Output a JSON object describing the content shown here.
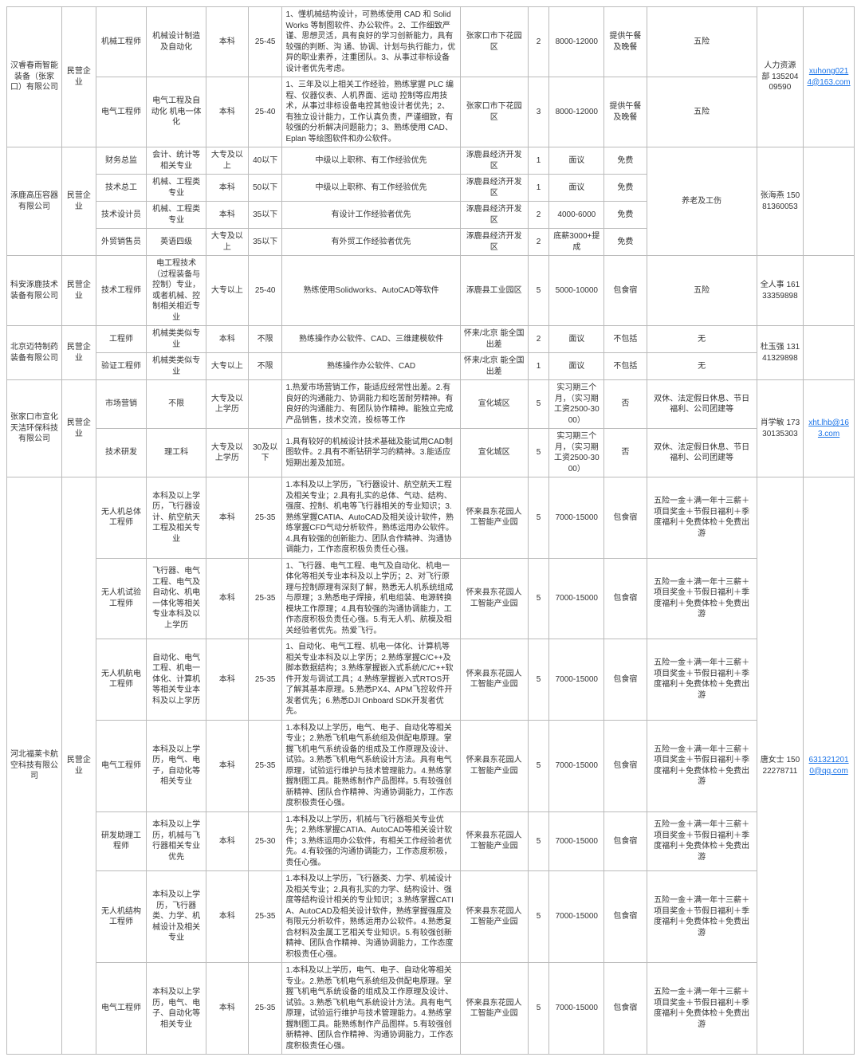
{
  "link_color": "#1a73e8",
  "cells": {
    "c1_name": "汉睿春雨智能装备（张家口）有限公司",
    "c1_type": "民营企业",
    "c1_p1_post": "机械工程师",
    "c1_p1_major": "机械设计制造及自动化",
    "c1_p1_edu": "本科",
    "c1_p1_age": "25-45",
    "c1_p1_req": "1、懂机械结构设计，可熟练使用 CAD 和 SolidWorks 等制图软件、办公软件。2、工作细致严谨、思想灵活，具有良好的学习创新能力，具有较强的判断、沟 通、协调、计划与执行能力，优异的职业素养，注重团队。3、从事过非标设备设计者优先考虑。",
    "c1_p1_loc": "张家口市下花园区",
    "c1_p1_num": "2",
    "c1_p1_sal": "8000-12000",
    "c1_p1_wel": "提供午餐及晚餐",
    "c1_p1_ins": "五险",
    "c1_p2_post": "电气工程师",
    "c1_p2_major": "电气工程及自动化 机电一体化",
    "c1_p2_edu": "本科",
    "c1_p2_age": "25-40",
    "c1_p2_req": "1、三年及以上相关工作经验，熟练掌握 PLC 编程、仪器仪表、人机界面、运动 控制等应用技术，从事过非标设备电控其他设计者优先；2、有独立设计能力，工作认真负责，严谨细致，有较强的分析解决问题能力；3、熟练使用 CAD、Eplan 等绘图软件和办公软件。",
    "c1_p2_loc": "张家口市下花园区",
    "c1_p2_num": "3",
    "c1_p2_sal": "8000-12000",
    "c1_p2_wel": "提供午餐及晚餐",
    "c1_p2_ins": "五险",
    "c1_contact": "人力资源部 13520409590",
    "c1_mail": "xuhong0214@163.com",
    "c2_name": "涿鹿高压容器有限公司",
    "c2_type": "民营企业",
    "c2_p1_post": "财务总监",
    "c2_p1_major": "会计、统计等相关专业",
    "c2_p1_edu": "大专及以上",
    "c2_p1_age": "40以下",
    "c2_p1_req": "中级以上职称、有工作经验优先",
    "c2_p1_loc": "涿鹿县经济开发区",
    "c2_p1_num": "1",
    "c2_p1_sal": "面议",
    "c2_p1_wel": "免费",
    "c2_p2_post": "技术总工",
    "c2_p2_major": "机械、工程类专业",
    "c2_p2_edu": "本科",
    "c2_p2_age": "50以下",
    "c2_p2_req": "中级以上职称、有工作经验优先",
    "c2_p2_loc": "涿鹿县经济开发区",
    "c2_p2_num": "1",
    "c2_p2_sal": "面议",
    "c2_p2_wel": "免费",
    "c2_p3_post": "技术设计员",
    "c2_p3_major": "机械、工程类专业",
    "c2_p3_edu": "本科",
    "c2_p3_age": "35以下",
    "c2_p3_req": "有设计工作经验者优先",
    "c2_p3_loc": "涿鹿县经济开发区",
    "c2_p3_num": "2",
    "c2_p3_sal": "4000-6000",
    "c2_p3_wel": "免费",
    "c2_p4_post": "外贸销售员",
    "c2_p4_major": "英语四级",
    "c2_p4_edu": "大专及以上",
    "c2_p4_age": "35以下",
    "c2_p4_req": "有外贸工作经验者优先",
    "c2_p4_loc": "涿鹿县经济开发区",
    "c2_p4_num": "2",
    "c2_p4_sal": "底薪3000+提成",
    "c2_p4_wel": "免费",
    "c2_ins": "养老及工伤",
    "c2_contact": "张海燕 15081360053",
    "c3_name": "科安涿鹿技术装备有限公司",
    "c3_type": "民营企业",
    "c3_p1_post": "技术工程师",
    "c3_p1_major": "电工程技术（过程装备与控制）专业，或者机械、控制相关相近专业",
    "c3_p1_edu": "大专以上",
    "c3_p1_age": "25-40",
    "c3_p1_req": "熟练使用Solidworks、AutoCAD等软件",
    "c3_p1_loc": "涿鹿县工业园区",
    "c3_p1_num": "5",
    "c3_p1_sal": "5000-10000",
    "c3_p1_wel": "包食宿",
    "c3_p1_ins": "五险",
    "c3_contact": "全人事 16133359898",
    "c4_name": "北京迈特制药装备有限公司",
    "c4_type": "民营企业",
    "c4_p1_post": "工程师",
    "c4_p1_major": "机械类类似专业",
    "c4_p1_edu": "本科",
    "c4_p1_age": "不限",
    "c4_p1_req": "熟练操作办公软件、CAD、三维建模软件",
    "c4_p1_loc": "怀来/北京 能全国出差",
    "c4_p1_num": "2",
    "c4_p1_sal": "面议",
    "c4_p1_wel": "不包括",
    "c4_p1_ins": "无",
    "c4_p2_post": "验证工程师",
    "c4_p2_major": "机械类类似专业",
    "c4_p2_edu": "大专以上",
    "c4_p2_age": "不限",
    "c4_p2_req": "熟练操作办公软件、CAD",
    "c4_p2_loc": "怀来/北京 能全国出差",
    "c4_p2_num": "1",
    "c4_p2_sal": "面议",
    "c4_p2_wel": "不包括",
    "c4_p2_ins": "无",
    "c4_contact": "杜玉强 13141329898",
    "c5_name": "张家口市宣化天洁环保科技有限公司",
    "c5_type": "民营企业",
    "c5_p1_post": "市场营销",
    "c5_p1_major": "不限",
    "c5_p1_edu": "大专及以上学历",
    "c5_p1_age": "",
    "c5_p1_req": "1.热爱市场营销工作，能适应经常性出差。2.有良好的沟通能力、协调能力和吃苦耐劳精神。有良好的沟通能力、有团队协作精神。能独立完成产品销售，技术交流，投标等工作",
    "c5_p1_loc": "宣化城区",
    "c5_p1_num": "5",
    "c5_p1_sal": "实习期三个月，（实习期工资2500-3000）",
    "c5_p1_wel": "否",
    "c5_p1_ins": "双休、法定假日休息、节日福利、公司团建等",
    "c5_p2_post": "技术研发",
    "c5_p2_major": "理工科",
    "c5_p2_edu": "大专及以上学历",
    "c5_p2_age": "30及以下",
    "c5_p2_req": "1.具有较好的机械设计技术基础及能试用CAD制图软件。2.具有不断钻研学习的精神。3.能适应短期出差及加班。",
    "c5_p2_loc": "宣化城区",
    "c5_p2_num": "5",
    "c5_p2_sal": "实习期三个月，（实习期工资2500-3000）",
    "c5_p2_wel": "否",
    "c5_p2_ins": "双休、法定假日休息、节日福利、公司团建等",
    "c5_contact": "肖学敏 17330135303",
    "c5_mail": "xht.lhb@163.com",
    "c6_name": "河北福莱卡航空科技有限公司",
    "c6_type": "民营企业",
    "c6_p1_post": "无人机总体工程师",
    "c6_p1_major": "本科及以上学历，飞行器设计、航空航天工程及相关专业",
    "c6_p1_edu": "本科",
    "c6_p1_age": "25-35",
    "c6_p1_req": "1.本科及以上学历，飞行器设计、航空航天工程及相关专业；2.具有扎实的总体、气动、结构、强度、控制、机电等飞行器相关的专业知识；3.熟练掌握CATIA、AutoCAD及相关设计软件，熟练掌握CFD气动分析软件，熟练运用办公软件。4.具有较强的创新能力、团队合作精神、沟通协调能力，工作态度积极负责任心强。",
    "c6_p1_loc": "怀来县东花园人工智能产业园",
    "c6_p1_num": "5",
    "c6_p1_sal": "7000-15000",
    "c6_p1_wel": "包食宿",
    "c6_p1_ins": "五险一金＋满一年十三薪＋项目奖金＋节假日福利＋季度福利＋免费体检＋免费出游",
    "c6_p2_post": "无人机试验工程师",
    "c6_p2_major": "飞行器、电气工程、电气及自动化、机电一体化等相关专业本科及以上学历",
    "c6_p2_edu": "本科",
    "c6_p2_age": "25-35",
    "c6_p2_req": "1、飞行器、电气工程、电气及自动化、机电一体化等相关专业本科及以上学历；2、对飞行原理与控制原理有深刻了解，熟悉无人机系统组成与原理；3.熟悉电子焊接，机电组装、电源转换模块工作原理；4.具有较强的沟通协调能力，工作态度积极负责任心强。5.有无人机、航模及相关经验者优先。热爱飞行。",
    "c6_p2_loc": "怀来县东花园人工智能产业园",
    "c6_p2_num": "5",
    "c6_p2_sal": "7000-15000",
    "c6_p2_wel": "包食宿",
    "c6_p2_ins": "五险一金＋满一年十三薪＋项目奖金＋节假日福利＋季度福利＋免费体检＋免费出游",
    "c6_p3_post": "无人机航电工程师",
    "c6_p3_major": "自动化、电气工程、机电一体化、计算机等相关专业本科及以上学历",
    "c6_p3_edu": "本科",
    "c6_p3_age": "25-35",
    "c6_p3_req": "1、自动化、电气工程、机电一体化、计算机等相关专业本科及以上学历；2.熟练掌握C/C++及脚本数据结构；3.熟练掌握嵌入式系统/C/C++软件开发与调试工具；4.熟练掌握嵌入式RTOS开了解其基本原理。5.熟悉PX4、APM飞控软件开发者优先；6.熟悉DJI Onboard SDK开发者优先。",
    "c6_p3_loc": "怀来县东花园人工智能产业园",
    "c6_p3_num": "5",
    "c6_p3_sal": "7000-15000",
    "c6_p3_wel": "包食宿",
    "c6_p3_ins": "五险一金＋满一年十三薪＋项目奖金＋节假日福利＋季度福利＋免费体检＋免费出游",
    "c6_p4_post": "电气工程师",
    "c6_p4_major": "本科及以上学历，电气、电子，自动化等相关专业",
    "c6_p4_edu": "本科",
    "c6_p4_age": "25-35",
    "c6_p4_req": "1.本科及以上学历，电气、电子、自动化等相关专业；2.熟悉飞机电气系统组及供配电原理。掌握飞机电气系统设备的组成及工作原理及设计、试验。3.熟悉飞机电气系统设计方法。具有电气原理，试验运行维护与技术管理能力。4.熟练掌握制图工具。能熟练制作产品图样。5.有较强创新精神、团队合作精神、沟通协调能力，工作态度积极责任心强。",
    "c6_p4_loc": "怀来县东花园人工智能产业园",
    "c6_p4_num": "5",
    "c6_p4_sal": "7000-15000",
    "c6_p4_wel": "包食宿",
    "c6_p4_ins": "五险一金＋满一年十三薪＋项目奖金＋节假日福利＋季度福利＋免费体检＋免费出游",
    "c6_p5_post": "研发助理工程师",
    "c6_p5_major": "本科及以上学历，机械与飞行器相关专业优先",
    "c6_p5_edu": "本科",
    "c6_p5_age": "25-30",
    "c6_p5_req": "1.本科及以上学历，机械与飞行器相关专业优先；2.熟练掌握CATIA、AutoCAD等相关设计软件；3.熟练运用办公软件，有相关工作经验者优先。4.有较强的沟通协调能力，工作态度积极，责任心强。",
    "c6_p5_loc": "怀来县东花园人工智能产业园",
    "c6_p5_num": "5",
    "c6_p5_sal": "7000-15000",
    "c6_p5_wel": "包食宿",
    "c6_p5_ins": "五险一金＋满一年十三薪＋项目奖金＋节假日福利＋季度福利＋免费体检＋免费出游",
    "c6_p6_post": "无人机结构工程师",
    "c6_p6_major": "本科及以上学历，飞行器类、力学、机械设计及相关专业",
    "c6_p6_edu": "本科",
    "c6_p6_age": "25-35",
    "c6_p6_req": "1.本科及以上学历，飞行器类、力学、机械设计及相关专业；2.具有扎实的力学、结构设计、强度等结构设计相关的专业知识；3.熟练掌握CATIA、AutoCAD及相关设计软件，熟练掌握强度及有限元分析软件，熟练运用办公软件。4.熟悉复合材料及金属工艺相关专业知识。5.有较强创新精神、团队合作精神、沟通协调能力，工作态度积极责任心强。",
    "c6_p6_loc": "怀来县东花园人工智能产业园",
    "c6_p6_num": "5",
    "c6_p6_sal": "7000-15000",
    "c6_p6_wel": "包食宿",
    "c6_p6_ins": "五险一金＋满一年十三薪＋项目奖金＋节假日福利＋季度福利＋免费体检＋免费出游",
    "c6_p7_post": "电气工程师",
    "c6_p7_major": "本科及以上学历，电气、电子、自动化等相关专业",
    "c6_p7_edu": "本科",
    "c6_p7_age": "25-35",
    "c6_p7_req": "1.本科及以上学历，电气、电子、自动化等相关专业。2.熟悉飞机电气系统组及供配电原理。掌握飞机电气系统设备的组成及工作原理及设计、试验。3.熟悉飞机电气系统设计方法。具有电气原理，试验运行维护与技术管理能力。4.熟练掌握制图工具。能熟练制作产品图样。5.有较强创新精神、团队合作精神、沟通协调能力，工作态度积极责任心强。",
    "c6_p7_loc": "怀来县东花园人工智能产业园",
    "c6_p7_num": "5",
    "c6_p7_sal": "7000-15000",
    "c6_p7_wel": "包食宿",
    "c6_p7_ins": "五险一金＋满一年十三薪＋项目奖金＋节假日福利＋季度福利＋免费体检＋免费出游",
    "c6_contact": "唐女士 15022278711",
    "c6_mail": "6313212010@qq.com"
  }
}
